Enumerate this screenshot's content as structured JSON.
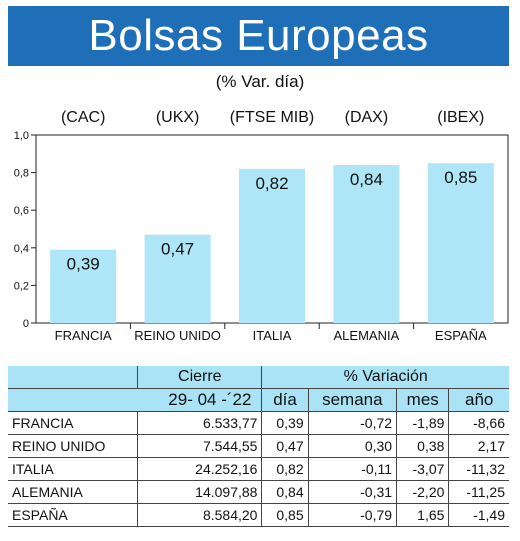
{
  "header": {
    "title": "Bolsas Europeas",
    "subtitle": "(% Var. día)"
  },
  "chart_data": {
    "type": "bar",
    "categories": [
      "FRANCIA",
      "REINO UNIDO",
      "ITALIA",
      "ALEMANIA",
      "ESPAÑA"
    ],
    "index_labels": [
      "(CAC)",
      "(UKX)",
      "(FTSE MIB)",
      "(DAX)",
      "(IBEX)"
    ],
    "values": [
      0.39,
      0.47,
      0.82,
      0.84,
      0.85
    ],
    "value_labels": [
      "0,39",
      "0,47",
      "0,82",
      "0,84",
      "0,85"
    ],
    "yticks": [
      0,
      0.2,
      0.4,
      0.6,
      0.8,
      1.0
    ],
    "ytick_labels": [
      "0",
      "0,2",
      "0,4",
      "0,6",
      "0,8",
      "1,0"
    ],
    "ylim": [
      0,
      1.0
    ],
    "grid": false,
    "bar_color": "#aee6f7"
  },
  "table": {
    "header_cierre": "Cierre",
    "header_variacion": "% Variación",
    "date": "29- 04 -´22",
    "col_dia": "día",
    "col_semana": "semana",
    "col_mes": "mes",
    "col_anio": "año",
    "rows": [
      {
        "name": "FRANCIA",
        "cierre": "6.533,77",
        "dia": "0,39",
        "semana": "-0,72",
        "mes": "-1,89",
        "anio": "-8,66"
      },
      {
        "name": "REINO UNIDO",
        "cierre": "7.544,55",
        "dia": "0,47",
        "semana": "0,30",
        "mes": "0,38",
        "anio": "2,17"
      },
      {
        "name": "ITALIA",
        "cierre": "24.252,16",
        "dia": "0,82",
        "semana": "-0,11",
        "mes": "-3,07",
        "anio": "-11,32"
      },
      {
        "name": "ALEMANIA",
        "cierre": "14.097,88",
        "dia": "0,84",
        "semana": "-0,31",
        "mes": "-2,20",
        "anio": "-11,25"
      },
      {
        "name": "ESPAÑA",
        "cierre": "8.584,20",
        "dia": "0,85",
        "semana": "-0,79",
        "mes": "1,65",
        "anio": "-1,49"
      }
    ]
  }
}
